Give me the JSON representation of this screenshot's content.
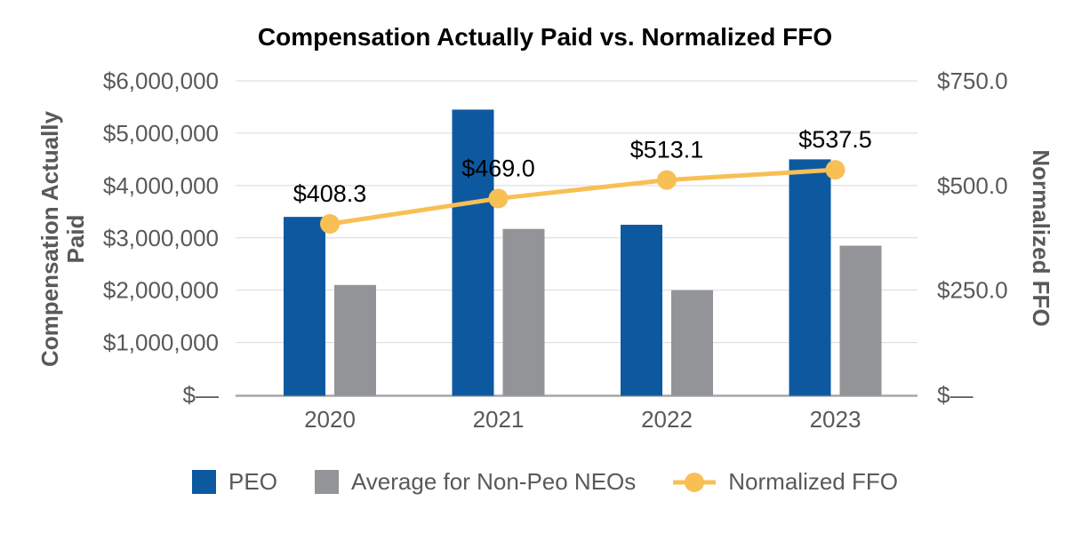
{
  "title": "Compensation Actually Paid vs. Normalized FFO",
  "chart_data": {
    "type": "bar",
    "subtype": "combo-bar-line-dual-axis",
    "title": "Compensation Actually Paid vs. Normalized FFO",
    "categories": [
      "2020",
      "2021",
      "2022",
      "2023"
    ],
    "series": [
      {
        "name": "PEO",
        "type": "bar",
        "axis": "left",
        "color": "#0D59A0",
        "values": [
          3400000,
          5450000,
          3250000,
          4500000
        ]
      },
      {
        "name": "Average for Non-Peo NEOs",
        "type": "bar",
        "axis": "left",
        "color": "#929497",
        "values": [
          2100000,
          3170000,
          2000000,
          2850000
        ]
      },
      {
        "name": "Normalized FFO",
        "type": "line",
        "axis": "right",
        "color": "#F8BF55",
        "values": [
          408.3,
          469.0,
          513.1,
          537.5
        ],
        "point_labels": [
          "$408.3",
          "$469.0",
          "$513.1",
          "$537.5"
        ]
      }
    ],
    "left_axis": {
      "title": "Compensation Actually Paid",
      "title_lines": "Compensation Actually\nPaid",
      "min": 0,
      "max": 6000000,
      "ticks": [
        {
          "value": 0,
          "label": "$—"
        },
        {
          "value": 1000000,
          "label": "$1,000,000"
        },
        {
          "value": 2000000,
          "label": "$2,000,000"
        },
        {
          "value": 3000000,
          "label": "$3,000,000"
        },
        {
          "value": 4000000,
          "label": "$4,000,000"
        },
        {
          "value": 5000000,
          "label": "$5,000,000"
        },
        {
          "value": 6000000,
          "label": "$6,000,000"
        }
      ]
    },
    "right_axis": {
      "title": "Normalized FFO",
      "min": 0,
      "max": 750,
      "ticks": [
        {
          "value": 0,
          "label": "$—"
        },
        {
          "value": 250,
          "label": "$250.0"
        },
        {
          "value": 500,
          "label": "$500.0"
        },
        {
          "value": 750,
          "label": "$750.0"
        }
      ]
    },
    "grid": true,
    "legend_position": "bottom"
  },
  "colors": {
    "background": "#FFFFFF",
    "title_text": "#000000",
    "axis_text": "#595959",
    "data_label_text": "#000000",
    "gridline": "#D9D9D9",
    "axis_line": "#A6A6A6"
  }
}
